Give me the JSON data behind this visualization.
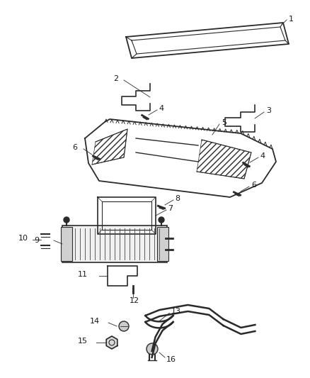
{
  "bg_color": "#ffffff",
  "line_color": "#2a2a2a",
  "label_color": "#1a1a1a",
  "label_fontsize": 7.5
}
